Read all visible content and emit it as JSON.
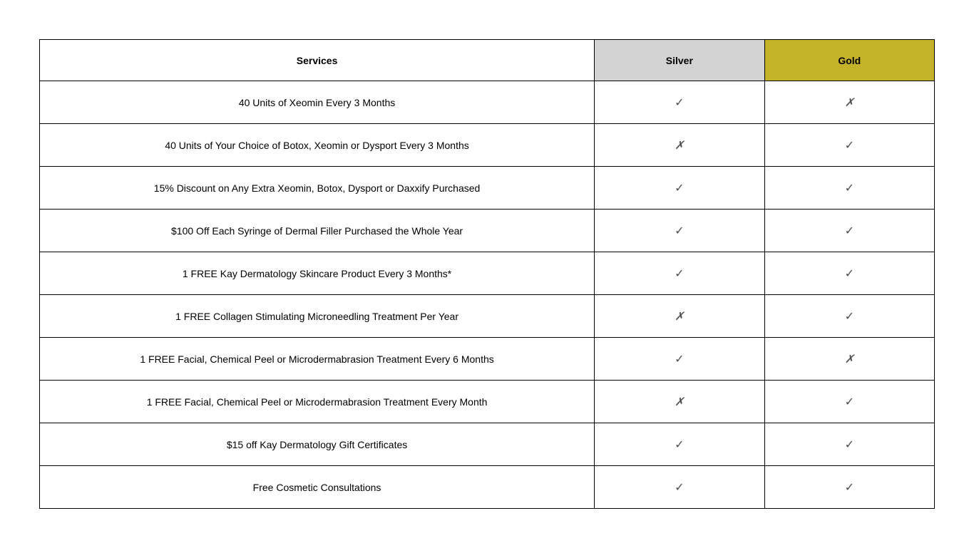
{
  "table": {
    "columns": [
      {
        "label": "Services",
        "bg": "#ffffff"
      },
      {
        "label": "Silver",
        "bg": "#d3d3d3"
      },
      {
        "label": "Gold",
        "bg": "#c5b22b"
      }
    ],
    "glyphs": {
      "check": "✓",
      "cross": "✗"
    },
    "mark_color": "#4d4d4d",
    "text_color": "#000000",
    "border_color": "#000000",
    "header_fontsize": 14,
    "cell_fontsize": 14,
    "mark_fontsize": 16,
    "rows": [
      {
        "service": "40 Units of Xeomin Every 3 Months",
        "silver": true,
        "gold": false
      },
      {
        "service": "40 Units of Your Choice of Botox, Xeomin or Dysport Every 3 Months",
        "silver": false,
        "gold": true
      },
      {
        "service": "15% Discount on Any Extra Xeomin, Botox, Dysport or Daxxify Purchased",
        "silver": true,
        "gold": true
      },
      {
        "service": "$100 Off Each Syringe of Dermal Filler Purchased the Whole Year",
        "silver": true,
        "gold": true
      },
      {
        "service": "1 FREE Kay Dermatology Skincare Product Every 3 Months*",
        "silver": true,
        "gold": true
      },
      {
        "service": "1 FREE Collagen Stimulating Microneedling Treatment Per Year",
        "silver": false,
        "gold": true
      },
      {
        "service": "1 FREE Facial, Chemical Peel or Microdermabrasion Treatment Every 6 Months",
        "silver": true,
        "gold": false
      },
      {
        "service": "1 FREE Facial, Chemical Peel or Microdermabrasion Treatment Every Month",
        "silver": false,
        "gold": true
      },
      {
        "service": "$15 off Kay Dermatology Gift Certificates",
        "silver": true,
        "gold": true
      },
      {
        "service": "Free Cosmetic Consultations",
        "silver": true,
        "gold": true
      }
    ]
  }
}
